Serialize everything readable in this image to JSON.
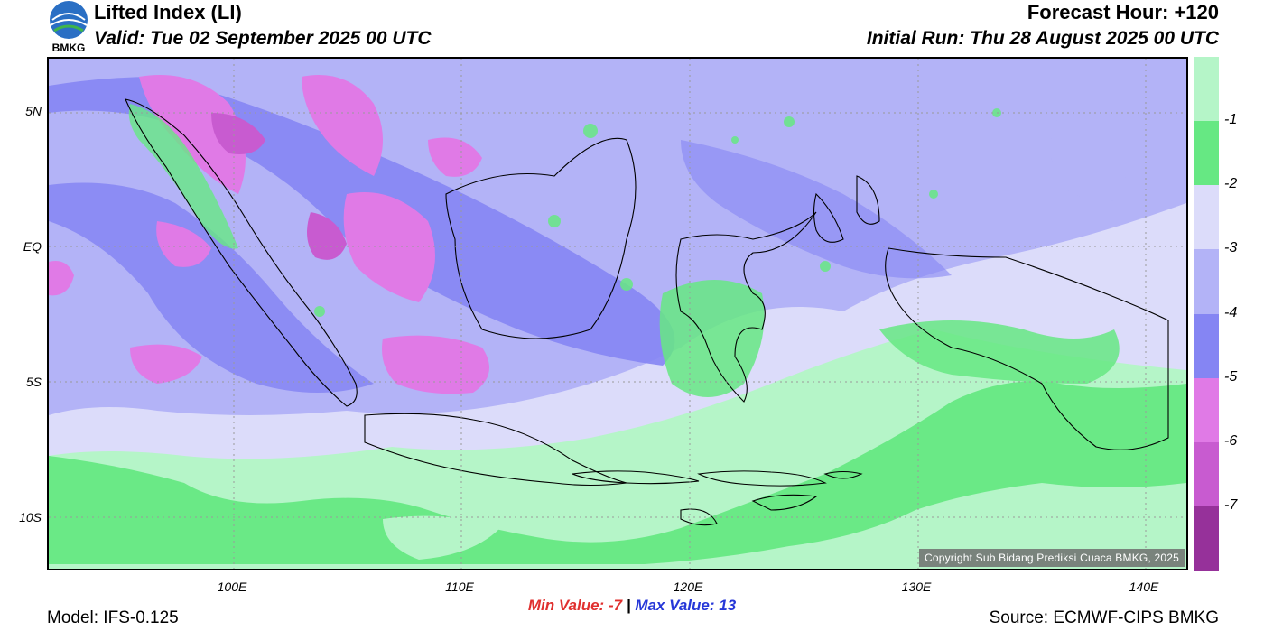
{
  "header": {
    "title": "Lifted Index (LI)",
    "valid": "Valid: Tue 02 September 2025 00 UTC",
    "forecast_hour": "Forecast Hour: +120",
    "initial_run": "Initial Run: Thu 28 August 2025 00 UTC",
    "logo_text": "BMKG"
  },
  "map": {
    "lat_labels": [
      "5N",
      "EQ",
      "5S",
      "10S"
    ],
    "lon_labels": [
      "100E",
      "110E",
      "120E",
      "130E",
      "140E"
    ],
    "copyright": "Copyright Sub Bidang Prediksi Cuaca BMKG, 2025"
  },
  "colorbar": {
    "colors": [
      "#b5f5c8",
      "#66e883",
      "#dcdcfa",
      "#b3b3f7",
      "#8585f3",
      "#e07ae6",
      "#c85bd0",
      "#96319a"
    ],
    "labels": [
      "-1",
      "-2",
      "-3",
      "-4",
      "-5",
      "-6",
      "-7"
    ]
  },
  "footer": {
    "min_label": "Min Value:",
    "min_value": "-7",
    "separator": "|",
    "max_label": "Max Value:",
    "max_value": "13",
    "model": "Model: IFS-0.125",
    "source": "Source: ECMWF-CIPS BMKG"
  }
}
